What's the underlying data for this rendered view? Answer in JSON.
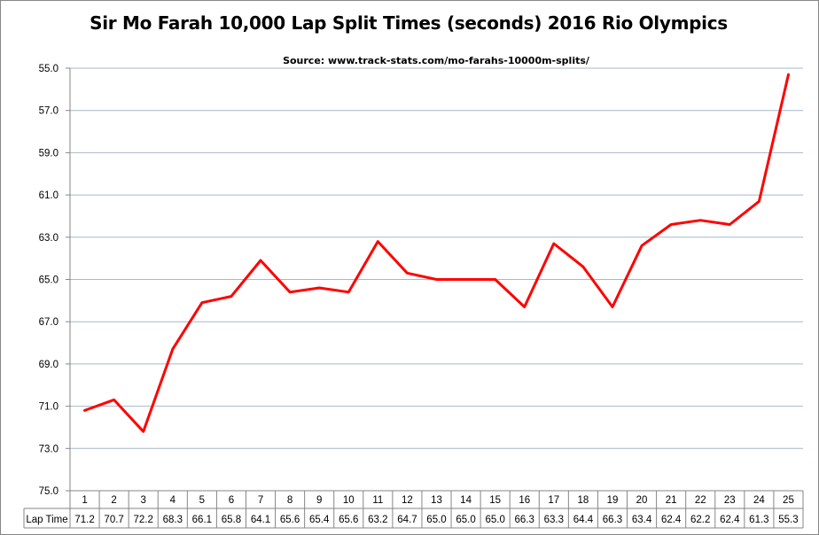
{
  "chart_data": {
    "type": "line",
    "title": "Sir Mo Farah 10,000 Lap Split Times (seconds) 2016 Rio Olympics",
    "source": "Source: www.track-stats.com/mo-farahs-10000m-splits/",
    "categories": [
      "1",
      "2",
      "3",
      "4",
      "5",
      "6",
      "7",
      "8",
      "9",
      "10",
      "11",
      "12",
      "13",
      "14",
      "15",
      "16",
      "17",
      "18",
      "19",
      "20",
      "21",
      "22",
      "23",
      "24",
      "25"
    ],
    "series": [
      {
        "name": "Lap Time",
        "values": [
          71.2,
          70.7,
          72.2,
          68.3,
          66.1,
          65.8,
          64.1,
          65.6,
          65.4,
          65.6,
          63.2,
          64.7,
          65.0,
          65.0,
          65.0,
          66.3,
          63.3,
          64.4,
          66.3,
          63.4,
          62.4,
          62.2,
          62.4,
          61.3,
          55.3
        ],
        "color": "#ff0000"
      }
    ],
    "value_labels": [
      "71.2",
      "70.7",
      "72.2",
      "68.3",
      "66.1",
      "65.8",
      "64.1",
      "65.6",
      "65.4",
      "65.6",
      "63.2",
      "64.7",
      "65.0",
      "65.0",
      "65.0",
      "66.3",
      "63.3",
      "64.4",
      "66.3",
      "63.4",
      "62.4",
      "62.2",
      "62.4",
      "61.3",
      "55.3"
    ],
    "yaxis": {
      "ticks": [
        "55.0",
        "57.0",
        "59.0",
        "61.0",
        "63.0",
        "65.0",
        "67.0",
        "69.0",
        "71.0",
        "73.0",
        "75.0"
      ],
      "min": 55,
      "max": 75,
      "reversed": true
    },
    "grid": true,
    "legend": "data-table-row",
    "gridline_color": "#a6b8cc"
  }
}
